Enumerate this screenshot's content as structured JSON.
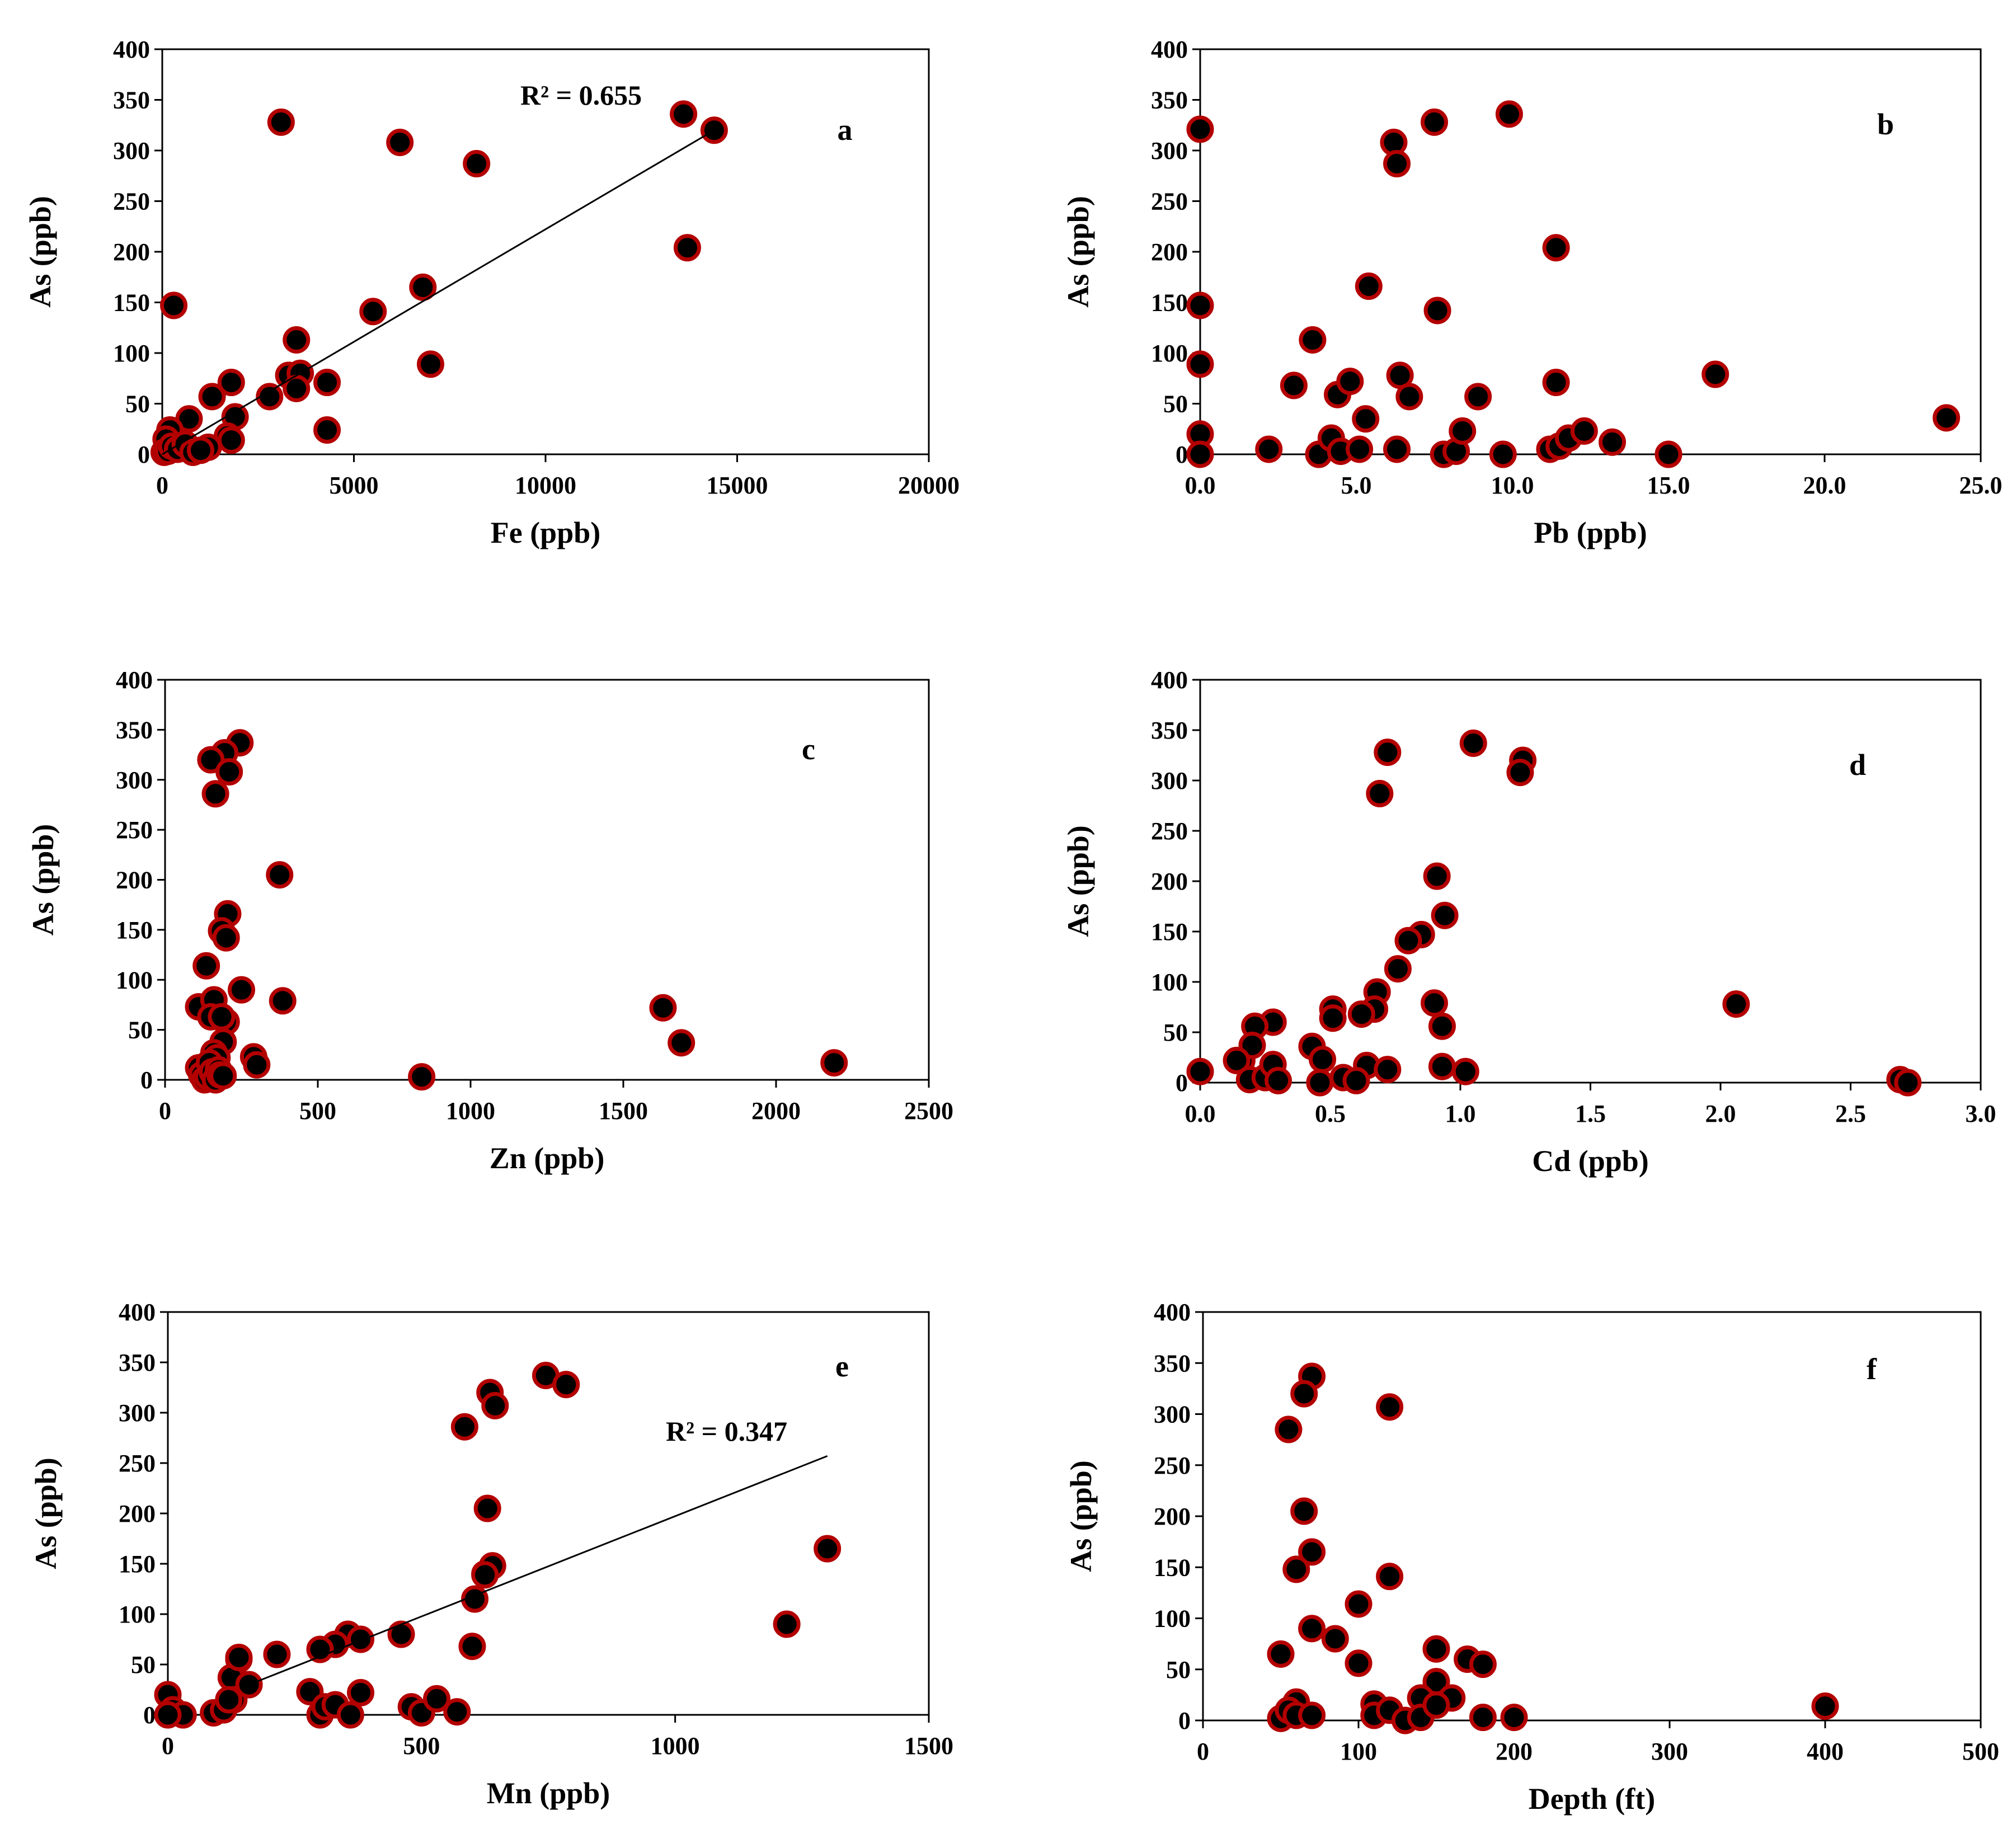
{
  "figure": {
    "panel_count": 6
  },
  "chart_data": [
    {
      "panel": "a",
      "type": "scatter",
      "xlabel": "Fe (ppb)",
      "ylabel": "As  (ppb)",
      "xlim": [
        0,
        20000
      ],
      "ylim": [
        0,
        400
      ],
      "xticks": [
        0,
        5000,
        10000,
        15000,
        20000
      ],
      "xtick_labels": [
        "0",
        "5000",
        "10000",
        "15000",
        "20000"
      ],
      "yticks": [
        0,
        50,
        100,
        150,
        200,
        250,
        300,
        350,
        400
      ],
      "ytick_labels": [
        "0",
        "50",
        "100",
        "150",
        "200",
        "250",
        "300",
        "350",
        "400"
      ],
      "annotation": "R² = 0.655",
      "trendline": {
        "x": [
          0,
          14400
        ],
        "y": [
          0,
          320
        ]
      },
      "x": [
        3100,
        6200,
        8200,
        13600,
        14400,
        13700,
        6800,
        7000,
        5500,
        3500,
        3300,
        3600,
        3500,
        4300,
        4300,
        1800,
        1900,
        2800,
        1300,
        700,
        1700,
        1800,
        1200,
        300,
        200,
        100,
        50,
        150,
        250,
        400,
        600,
        800,
        1000
      ],
      "y": [
        328,
        308,
        287,
        336,
        320,
        204,
        165,
        89,
        141,
        113,
        78,
        80,
        65,
        71,
        24,
        71,
        37,
        57,
        57,
        35,
        18,
        14,
        7,
        147,
        24,
        15,
        2,
        3,
        8,
        5,
        10,
        2,
        4
      ]
    },
    {
      "panel": "b",
      "type": "scatter",
      "xlabel": "Pb (ppb)",
      "ylabel": "As  (ppb)",
      "xlim": [
        0,
        25
      ],
      "ylim": [
        0,
        400
      ],
      "xticks": [
        0,
        5,
        10,
        15,
        20,
        25
      ],
      "xtick_labels": [
        "0.0",
        "5.0",
        "10.0",
        "15.0",
        "20.0",
        "25.0"
      ],
      "yticks": [
        0,
        50,
        100,
        150,
        200,
        250,
        300,
        350,
        400
      ],
      "ytick_labels": [
        "0",
        "50",
        "100",
        "150",
        "200",
        "250",
        "300",
        "350",
        "400"
      ],
      "x": [
        0,
        0,
        0,
        0,
        0,
        9.9,
        7.5,
        6.2,
        6.3,
        11.4,
        5.4,
        7.6,
        3.6,
        3.0,
        4.4,
        4.8,
        6.4,
        6.7,
        5.3,
        8.9,
        11.4,
        16.5,
        23.9,
        2.2,
        3.8,
        4.2,
        4.5,
        5.1,
        6.3,
        7.8,
        8.2,
        8.4,
        9.7,
        11.2,
        11.5,
        11.8,
        12.3,
        13.2,
        15.0
      ],
      "y": [
        321,
        147,
        89,
        20,
        0,
        336,
        328,
        308,
        287,
        204,
        166,
        142,
        113,
        68,
        59,
        72,
        78,
        57,
        35,
        57,
        71,
        79,
        36,
        5,
        0,
        16,
        3,
        5,
        5,
        0,
        3,
        23,
        0,
        5,
        8,
        16,
        23,
        12,
        0
      ]
    },
    {
      "panel": "c",
      "type": "scatter",
      "xlabel": "Zn (ppb)",
      "ylabel": "As  (ppb)",
      "xlim": [
        0,
        2500
      ],
      "ylim": [
        0,
        400
      ],
      "xticks": [
        0,
        500,
        1000,
        1500,
        2000,
        2500
      ],
      "xtick_labels": [
        "0",
        "500",
        "1000",
        "1500",
        "2000",
        "2500"
      ],
      "yticks": [
        0,
        50,
        100,
        150,
        200,
        250,
        300,
        350,
        400
      ],
      "ytick_labels": [
        "0",
        "50",
        "100",
        "150",
        "200",
        "250",
        "300",
        "350",
        "400"
      ],
      "x": [
        245,
        195,
        150,
        210,
        165,
        375,
        205,
        185,
        200,
        135,
        110,
        160,
        150,
        250,
        385,
        200,
        185,
        190,
        160,
        170,
        290,
        300,
        110,
        120,
        130,
        140,
        145,
        155,
        165,
        175,
        180,
        190,
        840,
        1630,
        1690,
        2190
      ],
      "y": [
        337,
        327,
        320,
        308,
        286,
        205,
        166,
        149,
        142,
        114,
        73,
        80,
        63,
        90,
        79,
        58,
        63,
        38,
        27,
        22,
        23,
        15,
        12,
        5,
        0,
        3,
        17,
        8,
        0,
        10,
        5,
        4,
        3,
        72,
        37,
        17
      ]
    },
    {
      "panel": "d",
      "type": "scatter",
      "xlabel": "Cd (ppb)",
      "ylabel": "As  (ppb)",
      "xlim": [
        0,
        3
      ],
      "ylim": [
        0,
        400
      ],
      "xticks": [
        0,
        0.5,
        1,
        1.5,
        2,
        2.5,
        3
      ],
      "xtick_labels": [
        "0.0",
        "0.5",
        "1.0",
        "1.5",
        "2.0",
        "2.5",
        "3.0"
      ],
      "yticks": [
        0,
        50,
        100,
        150,
        200,
        250,
        300,
        350,
        400
      ],
      "ytick_labels": [
        "0",
        "50",
        "100",
        "150",
        "200",
        "250",
        "300",
        "350",
        "400"
      ],
      "x": [
        1.05,
        0.72,
        1.24,
        1.23,
        0.69,
        0.91,
        0.94,
        0.85,
        0.8,
        0.76,
        0.68,
        0.67,
        0.62,
        0.51,
        0.51,
        0.28,
        0.21,
        0.9,
        0.93,
        0.16,
        0.2,
        0.43,
        0.47,
        0.64,
        0.72,
        0.93,
        1.02,
        0.0,
        0.14,
        0.19,
        0.25,
        0.28,
        0.3,
        0.46,
        0.55,
        0.6,
        2.06,
        2.69,
        2.72
      ],
      "y": [
        337,
        328,
        320,
        308,
        287,
        205,
        166,
        147,
        141,
        113,
        90,
        73,
        68,
        73,
        64,
        60,
        56,
        79,
        56,
        22,
        37,
        36,
        23,
        17,
        13,
        16,
        11,
        11,
        22,
        3,
        5,
        18,
        2,
        0,
        5,
        2,
        78,
        3,
        0
      ]
    },
    {
      "panel": "e",
      "type": "scatter",
      "xlabel": "Mn (ppb)",
      "ylabel": "As  (ppb)",
      "xlim": [
        0,
        1500
      ],
      "ylim": [
        0,
        400
      ],
      "xticks": [
        0,
        500,
        1000,
        1500
      ],
      "xtick_labels": [
        "0",
        "500",
        "1000",
        "1500"
      ],
      "yticks": [
        0,
        50,
        100,
        150,
        200,
        250,
        300,
        350,
        400
      ],
      "ytick_labels": [
        "0",
        "50",
        "100",
        "150",
        "200",
        "250",
        "300",
        "350",
        "400"
      ],
      "annotation": "R² = 0.347",
      "trendline": {
        "x": [
          160,
          1300
        ],
        "y": [
          30,
          257
        ]
      },
      "x": [
        745,
        785,
        635,
        645,
        585,
        630,
        625,
        640,
        625,
        605,
        600,
        1300,
        1220,
        460,
        355,
        380,
        330,
        300,
        215,
        140,
        125,
        130,
        140,
        160,
        0,
        10,
        30,
        0,
        90,
        110,
        120,
        280,
        300,
        310,
        330,
        360,
        380,
        480,
        500,
        530,
        570
      ],
      "y": [
        337,
        328,
        320,
        307,
        286,
        205,
        140,
        148,
        139,
        115,
        68,
        165,
        90,
        80,
        80,
        75,
        70,
        65,
        60,
        55,
        37,
        15,
        57,
        30,
        20,
        5,
        0,
        0,
        2,
        5,
        15,
        23,
        0,
        8,
        10,
        0,
        22,
        8,
        2,
        16,
        3
      ]
    },
    {
      "panel": "f",
      "type": "scatter",
      "xlabel": "Depth (ft)",
      "ylabel": "As  (ppb)",
      "xlim": [
        0,
        500
      ],
      "ylim": [
        0,
        400
      ],
      "xticks": [
        0,
        100,
        200,
        300,
        400,
        500
      ],
      "xtick_labels": [
        "0",
        "100",
        "200",
        "300",
        "400",
        "500"
      ],
      "yticks": [
        0,
        50,
        100,
        150,
        200,
        250,
        300,
        350,
        400
      ],
      "ytick_labels": [
        "0",
        "50",
        "100",
        "150",
        "200",
        "250",
        "300",
        "350",
        "400"
      ],
      "x": [
        70,
        65,
        120,
        55,
        65,
        70,
        60,
        120,
        100,
        70,
        85,
        50,
        100,
        150,
        170,
        180,
        60,
        110,
        150,
        140,
        160,
        180,
        200,
        400,
        50,
        55,
        60,
        70,
        110,
        120,
        130,
        140,
        150
      ],
      "y": [
        337,
        320,
        307,
        285,
        205,
        165,
        148,
        141,
        114,
        90,
        80,
        65,
        56,
        70,
        60,
        55,
        18,
        16,
        38,
        22,
        22,
        3,
        3,
        14,
        2,
        10,
        5,
        5,
        5,
        10,
        0,
        3,
        15
      ]
    }
  ]
}
